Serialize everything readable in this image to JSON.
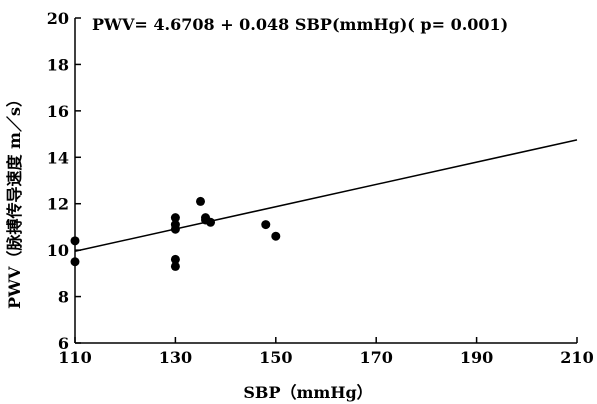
{
  "chart_data": {
    "type": "scatter",
    "title": "PWV= 4.6708 + 0.048 SBP(mmHg)( p= 0.001)",
    "xlabel": "SBP（mmHg）",
    "ylabel": "PWV（脉搏传导速度 m／s）",
    "xlim": [
      110,
      210
    ],
    "ylim": [
      6,
      20
    ],
    "xticks": [
      110,
      130,
      150,
      170,
      190,
      210
    ],
    "yticks": [
      6,
      8,
      10,
      12,
      14,
      16,
      18,
      20
    ],
    "grid": false,
    "points": [
      {
        "x": 110,
        "y": 10.4
      },
      {
        "x": 110,
        "y": 9.5
      },
      {
        "x": 130,
        "y": 11.4
      },
      {
        "x": 130,
        "y": 11.1
      },
      {
        "x": 130,
        "y": 10.9
      },
      {
        "x": 130,
        "y": 9.6
      },
      {
        "x": 130,
        "y": 9.3
      },
      {
        "x": 135,
        "y": 12.1
      },
      {
        "x": 136,
        "y": 11.4
      },
      {
        "x": 136,
        "y": 11.3
      },
      {
        "x": 137,
        "y": 11.2
      },
      {
        "x": 148,
        "y": 11.1
      },
      {
        "x": 150,
        "y": 10.6
      }
    ],
    "regression": {
      "intercept": 4.6708,
      "slope": 0.048
    }
  }
}
